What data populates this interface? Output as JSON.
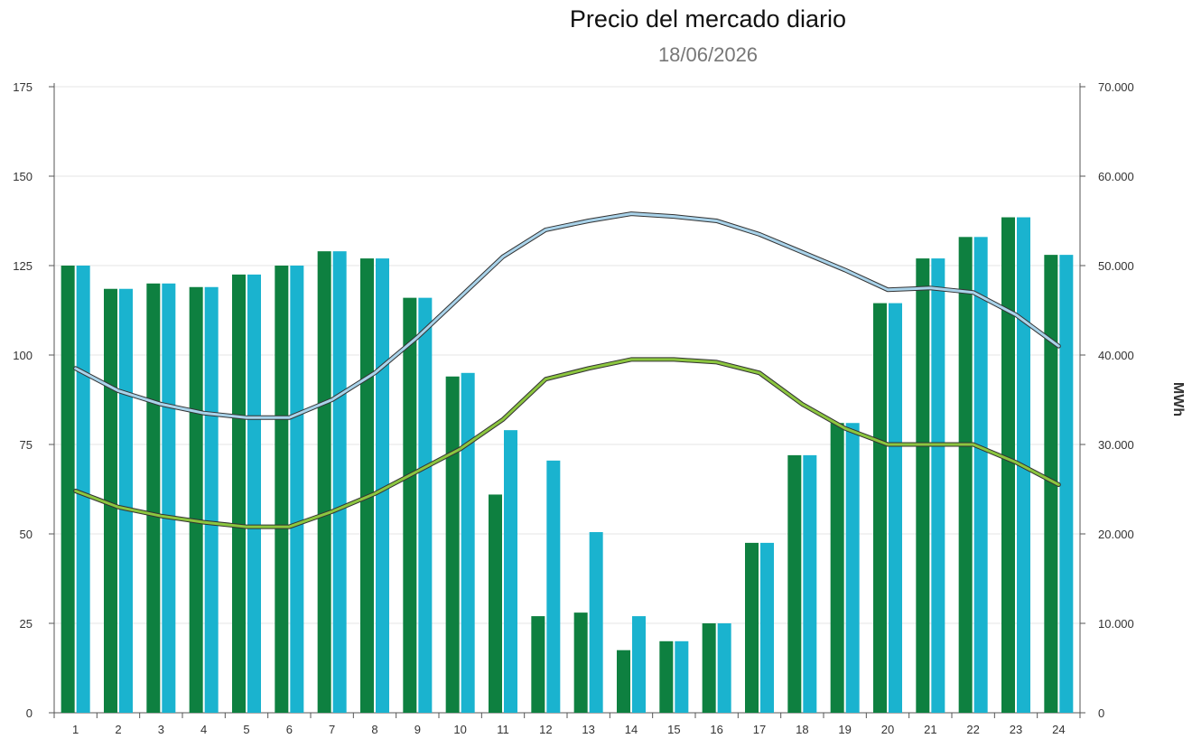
{
  "chart_data": {
    "type": "bar",
    "title": "Precio del mercado diario",
    "subtitle": "18/06/2026",
    "categories": [
      "1",
      "2",
      "3",
      "4",
      "5",
      "6",
      "7",
      "8",
      "9",
      "10",
      "11",
      "12",
      "13",
      "14",
      "15",
      "16",
      "17",
      "18",
      "19",
      "20",
      "21",
      "22",
      "23",
      "24"
    ],
    "series": [
      {
        "type": "bar",
        "axis": "left",
        "color": "#0e8040",
        "values": [
          125,
          118.5,
          120,
          119,
          122.5,
          125,
          129,
          127,
          116,
          94,
          61,
          27,
          28,
          17.5,
          20,
          25,
          47.5,
          72,
          81,
          114.5,
          127,
          133,
          138.5,
          128
        ]
      },
      {
        "type": "bar",
        "axis": "left",
        "color": "#1ab3cf",
        "values": [
          125,
          118.5,
          120,
          119,
          122.5,
          125,
          129,
          127,
          116,
          95,
          79,
          70.5,
          50.5,
          27,
          20,
          25,
          47.5,
          72,
          81,
          114.5,
          127,
          133,
          138.5,
          128
        ]
      },
      {
        "type": "line",
        "axis": "right",
        "color": "#a9d3ea",
        "outline": "#333333",
        "values": [
          38500,
          36000,
          34500,
          33500,
          33000,
          33000,
          35000,
          38000,
          42000,
          46500,
          51000,
          54000,
          55000,
          55800,
          55500,
          55000,
          53500,
          51500,
          49500,
          47300,
          47500,
          47000,
          44500,
          41000
        ]
      },
      {
        "type": "line",
        "axis": "right",
        "color": "#8cc63f",
        "outline": "#333333",
        "values": [
          24800,
          23000,
          22000,
          21300,
          20800,
          20800,
          22500,
          24500,
          27000,
          29500,
          32800,
          37300,
          38500,
          39500,
          39500,
          39200,
          38000,
          34500,
          31800,
          30000,
          30000,
          30000,
          28000,
          25500
        ]
      }
    ],
    "y_left": {
      "min": 0,
      "max": 175,
      "ticks": [
        "0",
        "25",
        "50",
        "75",
        "100",
        "125",
        "150",
        "175"
      ]
    },
    "y_right": {
      "min": 0,
      "max": 70000,
      "label": "MWh",
      "ticks": [
        "0",
        "10.000",
        "20.000",
        "30.000",
        "40.000",
        "50.000",
        "60.000",
        "70.000"
      ]
    },
    "grid": true,
    "legend": "none"
  }
}
